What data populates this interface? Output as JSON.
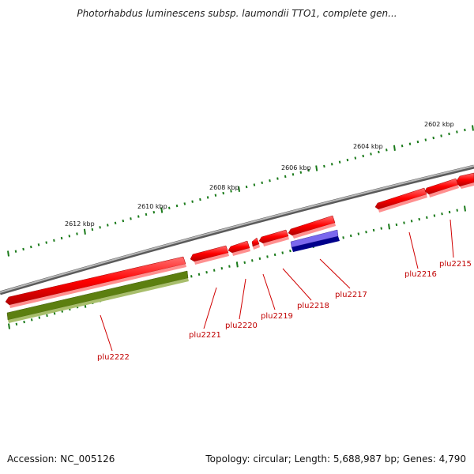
{
  "title": "Photorhabdus luminescens subsp. laumondii TTO1, complete gen...",
  "accession": "Accession: NC_005126",
  "summary": "Topology: circular; Length: 5,688,987 bp; Genes: 4,790",
  "colors": {
    "backbone": "#808080",
    "forward_gene": "#e00000",
    "reverse_gene": "#5c7f10",
    "highlight_gene_top": "#6a5acd",
    "highlight_gene_bottom": "#00008b",
    "tick": "#1a7a1a",
    "gene_label": "#c00000"
  },
  "ruler_labels": [
    "2602 kbp",
    "2604 kbp",
    "2606 kbp",
    "2608 kbp",
    "2610 kbp",
    "2612 kbp"
  ],
  "gene_labels": [
    "plu2215",
    "plu2216",
    "plu2217",
    "plu2218",
    "plu2219",
    "plu2220",
    "plu2221",
    "plu2222"
  ]
}
